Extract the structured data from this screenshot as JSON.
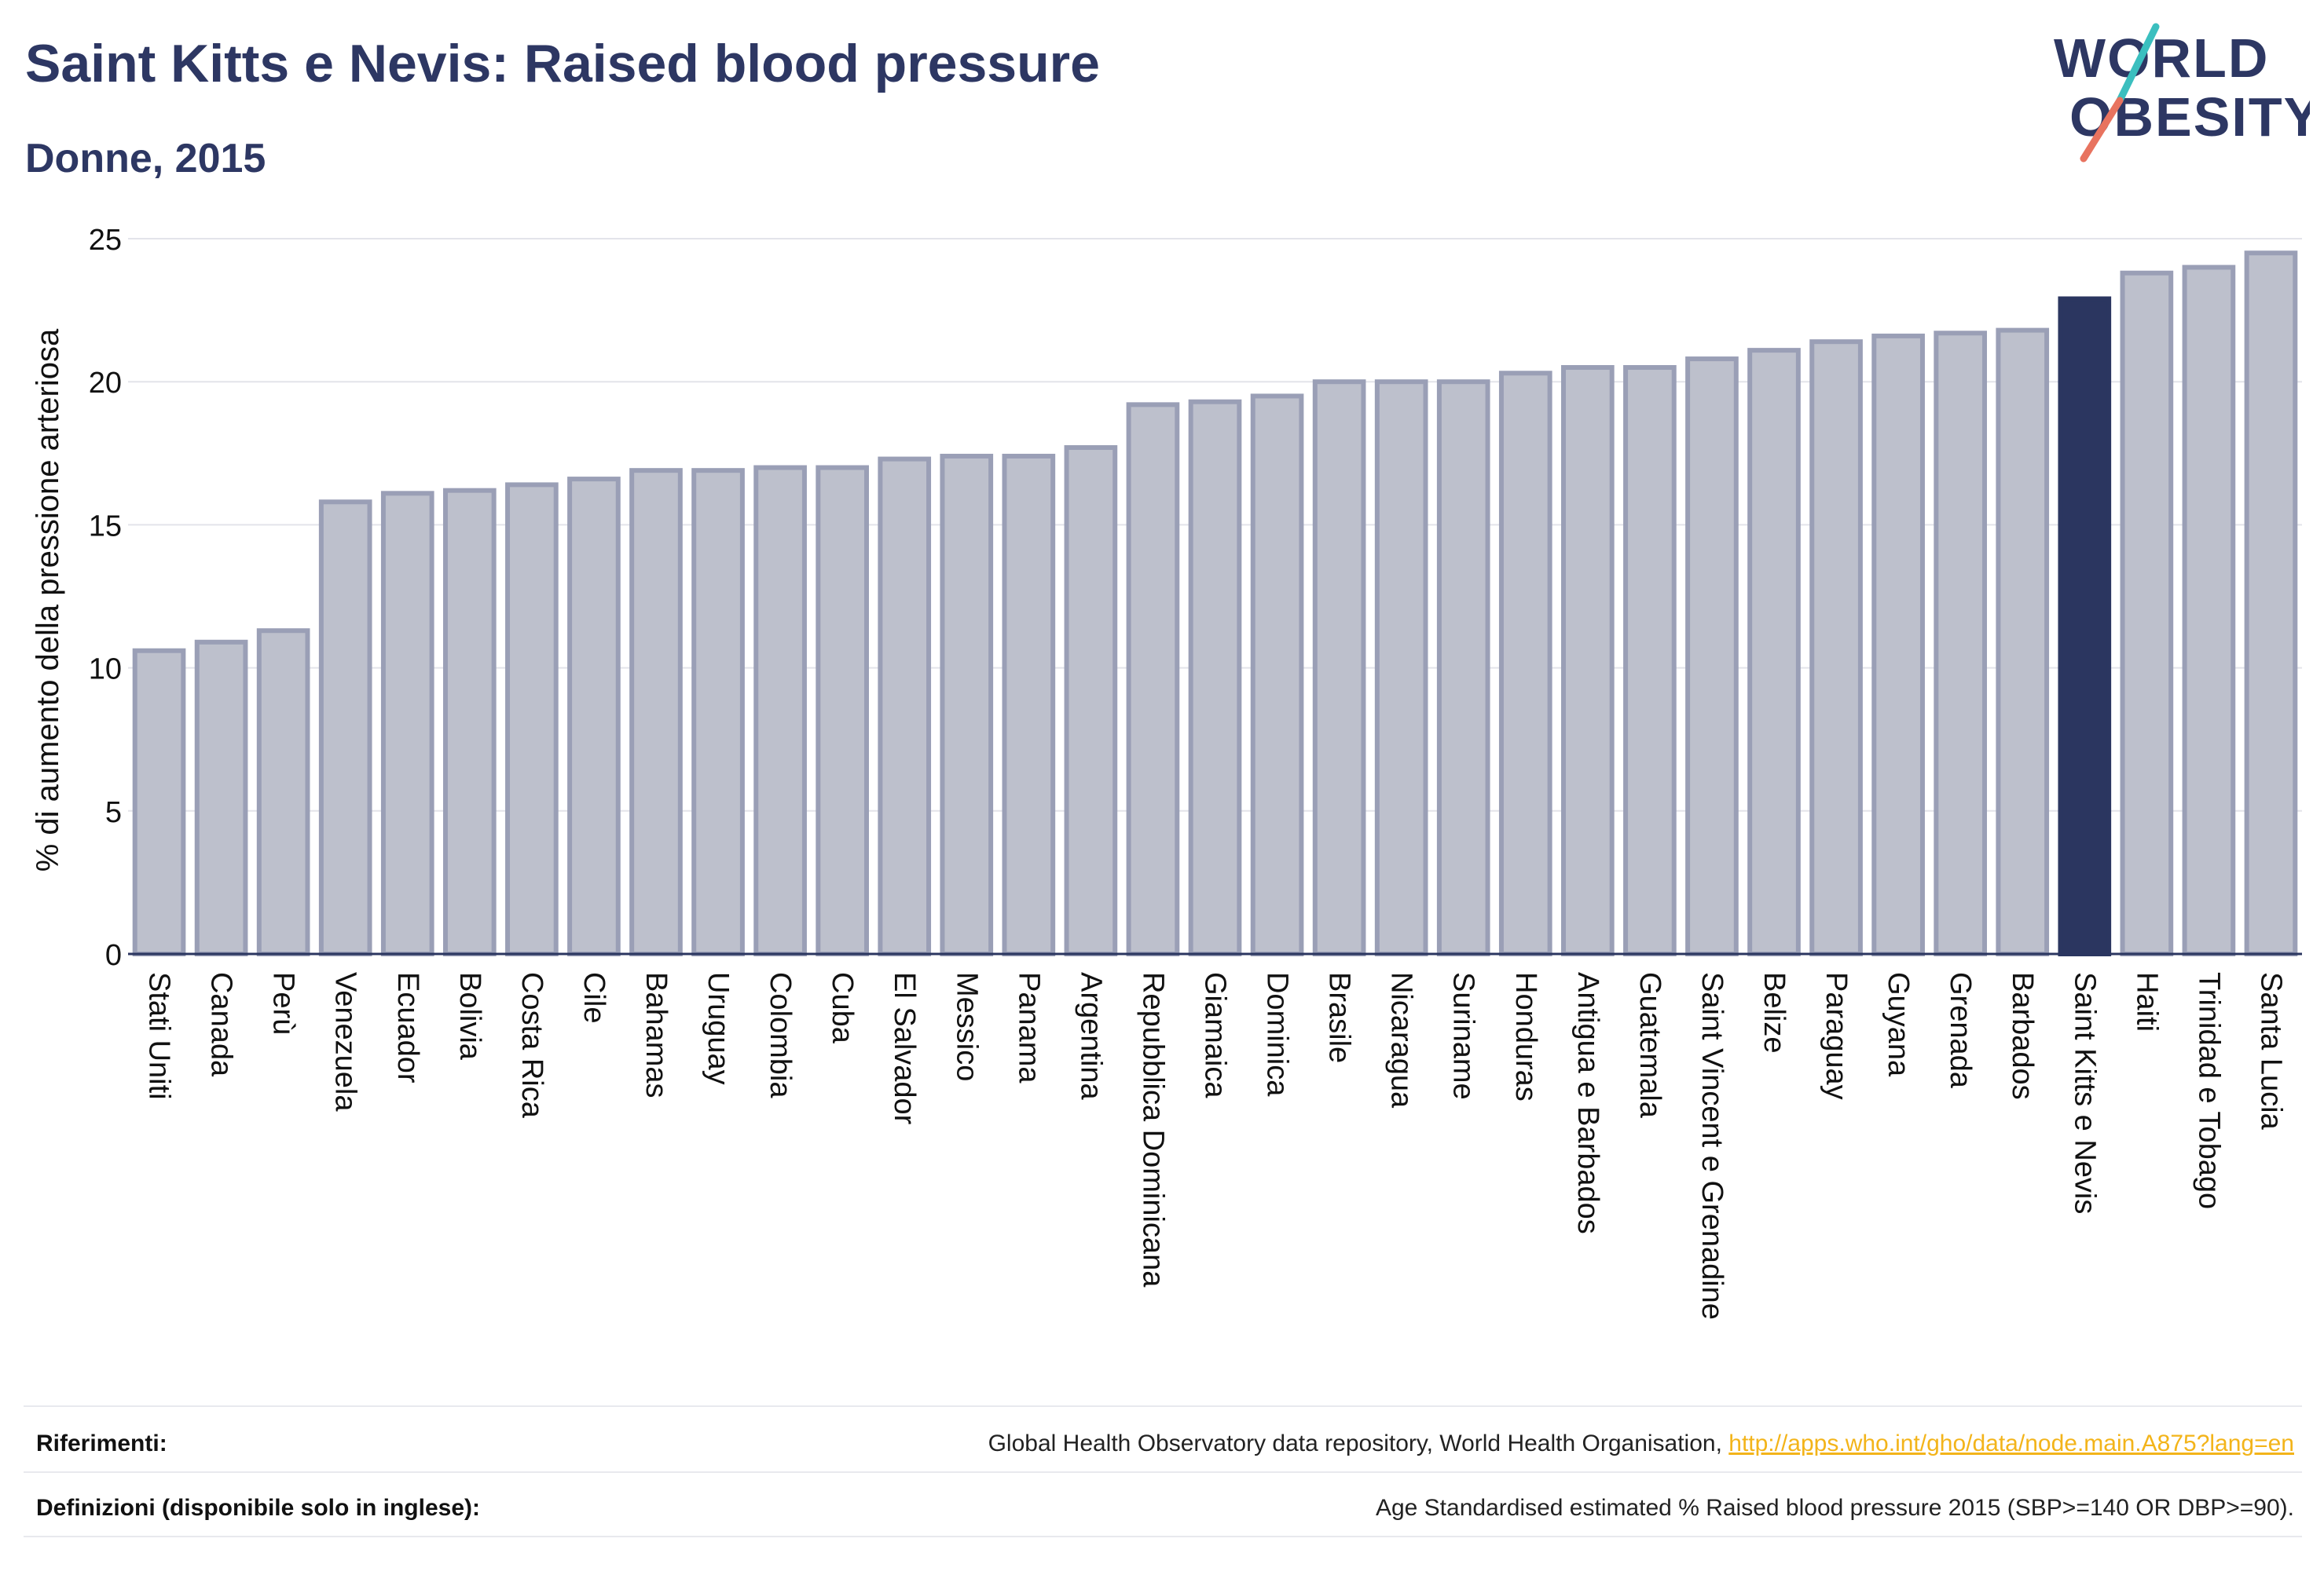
{
  "header": {
    "title": "Saint Kitts e Nevis: Raised blood pressure",
    "subtitle": "Donne, 2015"
  },
  "logo": {
    "line1": "WORLD",
    "line2": "OBESITY",
    "colors": {
      "text": "#2d3763",
      "slash_top": "#3bbfbf",
      "slash_bottom": "#e8735f"
    }
  },
  "colors": {
    "bar_default": "#bdc0cc",
    "bar_default_stroke": "#9a9fb6",
    "bar_highlight": "#2b3660",
    "axis": "#2b3660",
    "grid": "#e3e4ea",
    "link": "#f3b41a"
  },
  "chart_data": {
    "type": "bar",
    "title": "Saint Kitts e Nevis: Raised blood pressure",
    "subtitle": "Donne, 2015",
    "xlabel": "",
    "ylabel": "% di aumento della pressione arteriosa",
    "ylim": [
      0,
      25
    ],
    "yticks": [
      0,
      5,
      10,
      15,
      20,
      25
    ],
    "grid": true,
    "highlight": "Saint Kitts e Nevis",
    "categories": [
      "Stati Uniti",
      "Canada",
      "Perù",
      "Venezuela",
      "Ecuador",
      "Bolivia",
      "Costa Rica",
      "Cile",
      "Bahamas",
      "Uruguay",
      "Colombia",
      "Cuba",
      "El Salvador",
      "Messico",
      "Panama",
      "Argentina",
      "Repubblica Dominicana",
      "Giamaica",
      "Dominica",
      "Brasile",
      "Nicaragua",
      "Suriname",
      "Honduras",
      "Antigua e Barbados",
      "Guatemala",
      "Saint Vincent e Grenadine",
      "Belize",
      "Paraguay",
      "Guyana",
      "Grenada",
      "Barbados",
      "Saint Kitts e Nevis",
      "Haiti",
      "Trinidad e Tobago",
      "Santa Lucia"
    ],
    "values": [
      10.6,
      10.9,
      11.3,
      15.8,
      16.1,
      16.2,
      16.4,
      16.6,
      16.9,
      16.9,
      17.0,
      17.0,
      17.3,
      17.4,
      17.4,
      17.7,
      19.2,
      19.3,
      19.5,
      20.0,
      20.0,
      20.0,
      20.3,
      20.5,
      20.5,
      20.8,
      21.1,
      21.4,
      21.6,
      21.7,
      21.8,
      22.9,
      23.8,
      24.0,
      24.5
    ]
  },
  "footer": {
    "references_label": "Riferimenti:",
    "references_text": "Global Health Observatory data repository, World Health Organisation, ",
    "references_link": "http://apps.who.int/gho/data/node.main.A875?lang=en",
    "definitions_label": "Definizioni (disponibile solo in inglese):",
    "definitions_text": "Age Standardised estimated % Raised blood pressure 2015 (SBP>=140 OR DBP>=90)."
  }
}
